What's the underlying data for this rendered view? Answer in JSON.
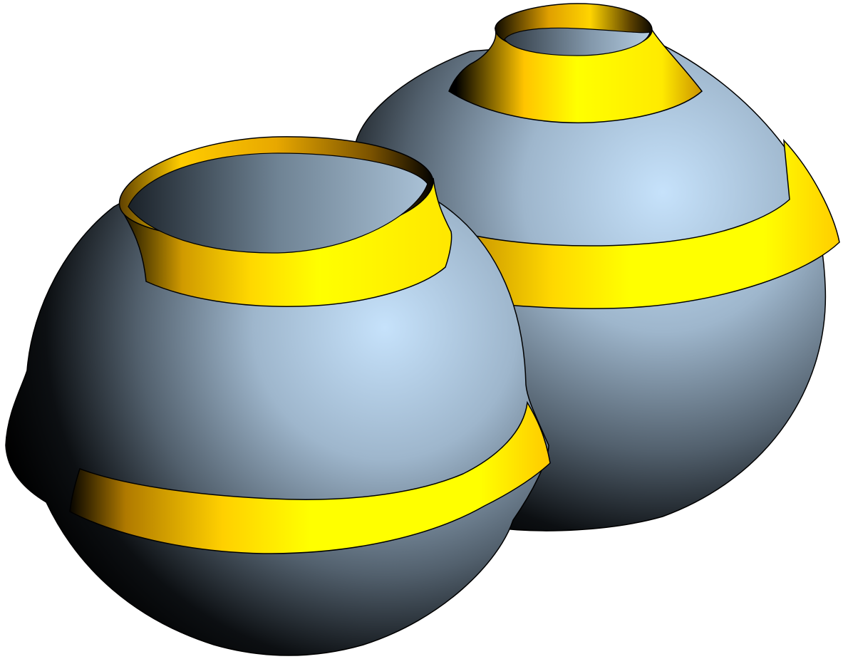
{
  "scene": {
    "objects": [
      {
        "name": "sphere-left",
        "surface": "sphere",
        "bands": 2
      },
      {
        "name": "sphere-right",
        "surface": "sphere",
        "bands": 2
      }
    ],
    "colors": {
      "background": "#ffffff",
      "sphere_highlight": "#c6e2fb",
      "sphere_mid": "#8aa2b8",
      "sphere_shadow": "#000000",
      "band_bright": "#ffff00",
      "band_mid": "#ffd500",
      "band_dark": "#000000",
      "outline": "#000000"
    }
  }
}
